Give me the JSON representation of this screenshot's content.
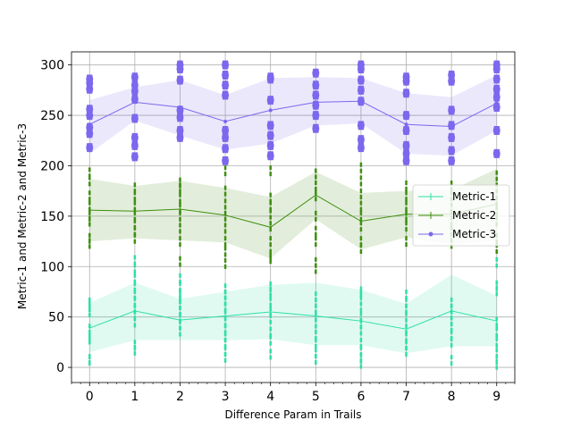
{
  "chart_data": {
    "type": "line",
    "title": "",
    "xlabel": "Difference Param in Trails",
    "ylabel": "Metric-1 and Metric-2 and Metric-3",
    "x": [
      0,
      1,
      2,
      3,
      4,
      5,
      6,
      7,
      8,
      9
    ],
    "xlim": [
      -0.4,
      9.4
    ],
    "ylim": [
      -15,
      313
    ],
    "xticks": [
      "0",
      "1",
      "2",
      "3",
      "4",
      "5",
      "6",
      "7",
      "8",
      "9"
    ],
    "yticks": [
      0,
      50,
      100,
      150,
      200,
      250,
      300
    ],
    "ytick_labels": [
      "0",
      "50",
      "100",
      "150",
      "200",
      "250",
      "300"
    ],
    "grid": true,
    "legend_position": "center-right",
    "series": [
      {
        "name": "Metric-1",
        "color": "#2de0a7",
        "marker": "vline",
        "values": [
          39,
          56,
          47,
          51,
          55,
          51,
          46,
          38,
          56,
          46
        ],
        "band_low": [
          15,
          27,
          27,
          27,
          28,
          22,
          22,
          14,
          21,
          21
        ],
        "band_high": [
          64,
          84,
          68,
          75,
          82,
          84,
          77,
          63,
          92,
          71
        ],
        "points": [
          [
            7,
            8,
            28,
            32,
            38,
            55,
            60,
            64
          ],
          [
            17,
            22,
            45,
            52,
            58,
            65,
            72,
            80,
            88,
            98,
            106
          ],
          [
            36,
            42,
            49,
            56,
            62,
            68,
            72,
            80,
            88
          ],
          [
            10,
            16,
            24,
            30,
            38,
            45,
            52,
            60,
            66,
            72,
            78
          ],
          [
            13,
            27,
            35,
            48,
            55,
            65,
            75,
            80
          ],
          [
            8,
            14,
            24,
            32,
            44,
            50,
            58,
            64,
            70
          ],
          [
            4,
            9,
            16,
            24,
            37,
            43,
            50,
            60,
            72,
            75
          ],
          [
            16,
            22,
            30,
            38,
            50,
            58,
            64,
            72
          ],
          [
            7,
            25,
            32,
            40,
            46,
            52,
            58,
            64
          ],
          [
            3,
            8,
            14,
            25,
            35,
            45,
            76,
            81,
            104
          ]
        ]
      },
      {
        "name": "Metric-2",
        "color": "#3f8f10",
        "marker": "vline",
        "values": [
          156,
          155,
          157,
          151,
          139,
          171,
          145,
          152,
          152,
          162
        ],
        "band_low": [
          125,
          128,
          126,
          124,
          108,
          147,
          117,
          129,
          122,
          126
        ],
        "band_high": [
          187,
          180,
          185,
          178,
          169,
          194,
          173,
          175,
          176,
          197
        ],
        "points": [
          [
            123,
            128,
            145,
            150,
            160,
            170,
            185,
            193
          ],
          [
            128,
            135,
            142,
            150,
            160,
            170,
            178
          ],
          [
            105,
            125,
            138,
            150,
            158,
            168,
            178,
            183
          ],
          [
            103,
            115,
            125,
            138,
            150,
            162,
            175,
            195
          ],
          [
            108,
            112,
            125,
            140,
            152,
            160,
            168,
            195
          ],
          [
            98,
            104,
            125,
            135,
            150,
            170,
            180,
            192
          ],
          [
            118,
            125,
            140,
            150,
            160,
            172,
            185,
            198
          ],
          [
            125,
            140,
            150,
            160,
            170,
            180
          ],
          [
            123,
            135,
            145,
            158,
            170,
            180
          ],
          [
            118,
            128,
            145,
            155,
            165,
            178,
            190
          ]
        ]
      },
      {
        "name": "Metric-3",
        "color": "#7b68ee",
        "marker": "point",
        "values": [
          241,
          263,
          258,
          244,
          255,
          263,
          264,
          241,
          239,
          262
        ],
        "band_low": [
          212,
          245,
          230,
          216,
          222,
          240,
          242,
          212,
          210,
          235
        ],
        "band_high": [
          265,
          278,
          285,
          270,
          287,
          288,
          287,
          272,
          268,
          290
        ],
        "points": [
          [
            218,
            232,
            238,
            250,
            256,
            276,
            282,
            286
          ],
          [
            209,
            220,
            228,
            247,
            266,
            274,
            280,
            288
          ],
          [
            228,
            235,
            248,
            255,
            285,
            296,
            300
          ],
          [
            205,
            217,
            228,
            235,
            270,
            280,
            290,
            300
          ],
          [
            210,
            220,
            230,
            240,
            265,
            286,
            288
          ],
          [
            237,
            250,
            260,
            270,
            280,
            292
          ],
          [
            218,
            226,
            240,
            264,
            275,
            285,
            296,
            300
          ],
          [
            205,
            212,
            220,
            235,
            250,
            272,
            284,
            288
          ],
          [
            205,
            215,
            228,
            240,
            255,
            284,
            290
          ],
          [
            212,
            235,
            258,
            268,
            276,
            286,
            296,
            300
          ]
        ]
      }
    ]
  }
}
